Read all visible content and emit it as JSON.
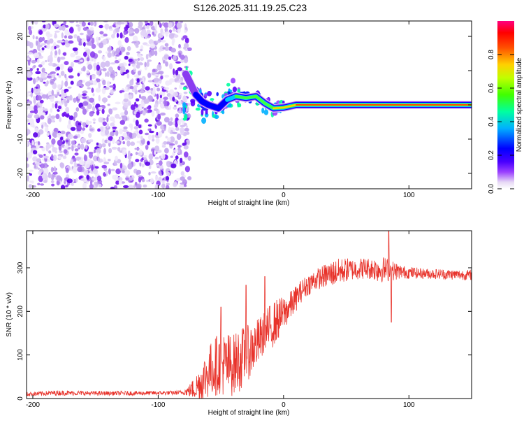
{
  "title": "S126.2025.311.19.25.C23",
  "chart_data": [
    {
      "type": "heatmap",
      "xlabel": "Height of straight line (km)",
      "ylabel": "Frequency (Hz)",
      "xlim": [
        -205,
        150
      ],
      "ylim": [
        -24.5,
        24.5
      ],
      "xticks": [
        -200,
        -100,
        0,
        100
      ],
      "yticks": [
        -20,
        -10,
        0,
        10,
        20
      ],
      "xtick_labels": [
        "-200",
        "-100",
        "0",
        "100"
      ],
      "ytick_labels": [
        "-20",
        "-10",
        "0",
        "10",
        "20"
      ],
      "colorbar": {
        "label": "Normalized spectral amplitude",
        "range": [
          0,
          1
        ],
        "ticks": [
          0.0,
          0.2,
          0.4,
          0.6,
          0.8
        ],
        "tick_labels": [
          "0.0",
          "0.2",
          "0.4",
          "0.6",
          "0.8"
        ],
        "colors": [
          "#e6e0f5",
          "#7a00e6",
          "#0000ff",
          "#00c8ff",
          "#00ff80",
          "#80ff00",
          "#ffff00",
          "#ff8000",
          "#ff0000",
          "#ff0080"
        ]
      },
      "noise_region": {
        "x_range": [
          -205,
          -75
        ],
        "freq_range": [
          -24.5,
          24.5
        ]
      },
      "signal_ridge": [
        {
          "x": -78,
          "f": 9
        },
        {
          "x": -74,
          "f": 6
        },
        {
          "x": -70,
          "f": 3
        },
        {
          "x": -65,
          "f": 1
        },
        {
          "x": -60,
          "f": 0
        },
        {
          "x": -52,
          "f": -1
        },
        {
          "x": -45,
          "f": 1.5
        },
        {
          "x": -38,
          "f": 2.5
        },
        {
          "x": -30,
          "f": 2
        },
        {
          "x": -22,
          "f": 2.5
        },
        {
          "x": -15,
          "f": 0.5
        },
        {
          "x": -8,
          "f": -1
        },
        {
          "x": 0,
          "f": -0.8
        },
        {
          "x": 10,
          "f": 0
        },
        {
          "x": 20,
          "f": 0
        },
        {
          "x": 40,
          "f": 0
        },
        {
          "x": 60,
          "f": 0
        },
        {
          "x": 80,
          "f": 0
        },
        {
          "x": 100,
          "f": 0
        },
        {
          "x": 120,
          "f": 0
        },
        {
          "x": 150,
          "f": 0
        }
      ]
    },
    {
      "type": "line",
      "xlabel": "Height of straight line (km)",
      "ylabel": "SNR (10 * v/v)",
      "xlim": [
        -205,
        150
      ],
      "ylim": [
        0,
        385
      ],
      "xticks": [
        -200,
        -100,
        0,
        100
      ],
      "yticks": [
        0,
        100,
        200,
        300
      ],
      "xtick_labels": [
        "-200",
        "-100",
        "0",
        "100"
      ],
      "ytick_labels": [
        "0",
        "100",
        "200",
        "300"
      ],
      "color": "#e8332b",
      "series": [
        {
          "name": "SNR",
          "x": [
            -205,
            -180,
            -150,
            -120,
            -90,
            -80,
            -75,
            -70,
            -65,
            -60,
            -55,
            -50,
            -45,
            -40,
            -35,
            -30,
            -25,
            -20,
            -15,
            -10,
            -5,
            0,
            5,
            10,
            15,
            20,
            25,
            30,
            35,
            40,
            45,
            50,
            55,
            60,
            65,
            70,
            75,
            80,
            85,
            90,
            95,
            100,
            110,
            120,
            130,
            140,
            150
          ],
          "y": [
            10,
            13,
            12,
            12,
            13,
            14,
            18,
            25,
            40,
            60,
            75,
            80,
            75,
            78,
            90,
            100,
            115,
            130,
            150,
            165,
            180,
            195,
            210,
            230,
            250,
            262,
            272,
            278,
            283,
            288,
            292,
            295,
            296,
            298,
            299,
            298,
            297,
            296,
            294,
            292,
            290,
            289,
            287,
            286,
            285,
            284,
            283
          ],
          "noise_amp": [
            5,
            6,
            5,
            5,
            5,
            5,
            15,
            30,
            50,
            60,
            70,
            70,
            80,
            70,
            75,
            65,
            60,
            55,
            50,
            55,
            50,
            40,
            35,
            30,
            25,
            25,
            25,
            25,
            30,
            30,
            30,
            28,
            25,
            25,
            25,
            25,
            30,
            30,
            25,
            20,
            15,
            14,
            12,
            12,
            12,
            12,
            12
          ]
        }
      ],
      "spikes": [
        {
          "x": -50,
          "y": 210
        },
        {
          "x": -30,
          "y": 260
        },
        {
          "x": -15,
          "y": 280
        },
        {
          "x": 84,
          "y": 385
        },
        {
          "x": 86,
          "y": 175
        }
      ]
    }
  ]
}
